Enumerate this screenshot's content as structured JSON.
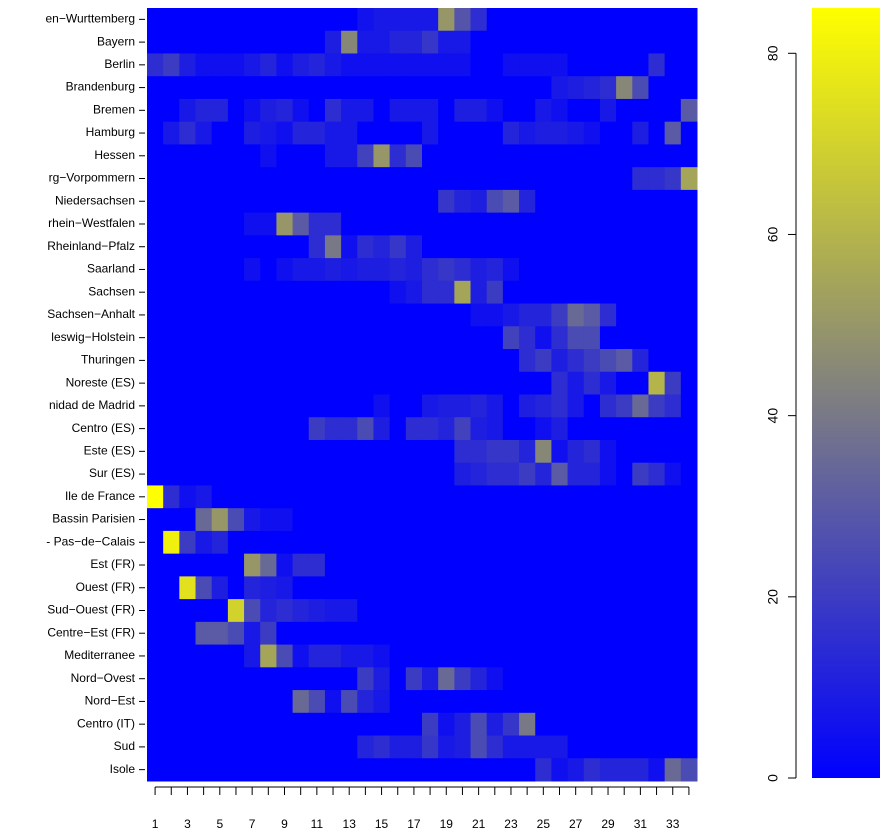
{
  "chart_data": {
    "type": "heatmap",
    "rows": [
      "en−Wurttemberg",
      "Bayern",
      "Berlin",
      "Brandenburg",
      "Bremen",
      "Hamburg",
      "Hessen",
      "rg−Vorpommern",
      "Niedersachsen",
      "rhein−Westfalen",
      "Rheinland−Pfalz",
      "Saarland",
      "Sachsen",
      "Sachsen−Anhalt",
      "leswig−Holstein",
      "Thuringen",
      "Noreste (ES)",
      "nidad de Madrid",
      "Centro (ES)",
      "Este (ES)",
      "Sur (ES)",
      "Ile de France",
      "Bassin Parisien",
      "- Pas−de−Calais",
      "Est (FR)",
      "Ouest (FR)",
      "Sud−Ouest (FR)",
      "Centre−Est (FR)",
      "Mediterranee",
      "Nord−Ovest",
      "Nord−Est",
      "Centro (IT)",
      "Sud",
      "Isole"
    ],
    "columns": [
      1,
      null,
      3,
      null,
      5,
      null,
      7,
      null,
      9,
      null,
      11,
      null,
      13,
      null,
      15,
      null,
      17,
      null,
      19,
      null,
      21,
      null,
      23,
      null,
      25,
      null,
      27,
      null,
      29,
      null,
      31,
      null,
      33,
      null
    ],
    "values": [
      [
        0,
        0,
        0,
        0,
        0,
        0,
        0,
        0,
        0,
        0,
        0,
        0,
        0,
        6,
        8,
        8,
        8,
        8,
        50,
        28,
        15,
        0,
        0,
        0,
        0,
        0,
        0,
        0,
        0,
        0,
        0,
        0,
        0,
        0
      ],
      [
        0,
        0,
        0,
        0,
        0,
        0,
        0,
        0,
        0,
        0,
        0,
        10,
        45,
        8,
        8,
        12,
        12,
        18,
        8,
        8,
        0,
        0,
        0,
        0,
        0,
        0,
        0,
        0,
        0,
        0,
        0,
        0,
        0,
        0
      ],
      [
        15,
        20,
        10,
        5,
        5,
        5,
        8,
        12,
        5,
        10,
        12,
        8,
        5,
        5,
        5,
        5,
        5,
        5,
        5,
        5,
        0,
        0,
        5,
        5,
        5,
        5,
        0,
        0,
        0,
        0,
        0,
        15,
        0,
        0
      ],
      [
        0,
        0,
        0,
        0,
        0,
        0,
        0,
        0,
        0,
        0,
        0,
        0,
        0,
        0,
        0,
        0,
        0,
        0,
        0,
        0,
        0,
        0,
        0,
        0,
        0,
        8,
        10,
        12,
        15,
        45,
        25,
        0,
        0,
        0
      ],
      [
        0,
        0,
        8,
        12,
        12,
        0,
        5,
        10,
        12,
        5,
        0,
        15,
        8,
        8,
        0,
        8,
        8,
        8,
        0,
        10,
        10,
        5,
        0,
        0,
        8,
        5,
        0,
        0,
        8,
        0,
        0,
        0,
        0,
        30
      ],
      [
        0,
        8,
        15,
        8,
        0,
        0,
        10,
        8,
        5,
        12,
        12,
        8,
        8,
        0,
        0,
        0,
        0,
        8,
        0,
        0,
        0,
        0,
        12,
        8,
        10,
        10,
        8,
        5,
        0,
        0,
        10,
        0,
        30,
        0
      ],
      [
        0,
        0,
        0,
        0,
        0,
        0,
        0,
        5,
        0,
        0,
        0,
        8,
        8,
        22,
        50,
        15,
        25,
        0,
        0,
        0,
        0,
        0,
        0,
        0,
        0,
        0,
        0,
        0,
        0,
        0,
        0,
        0,
        0,
        0
      ],
      [
        0,
        0,
        0,
        0,
        0,
        0,
        0,
        0,
        0,
        0,
        0,
        0,
        0,
        0,
        0,
        0,
        0,
        0,
        0,
        0,
        0,
        0,
        0,
        0,
        0,
        0,
        0,
        0,
        0,
        0,
        15,
        15,
        18,
        55
      ],
      [
        0,
        0,
        0,
        0,
        0,
        0,
        0,
        0,
        0,
        0,
        0,
        0,
        0,
        0,
        0,
        0,
        0,
        0,
        18,
        12,
        10,
        25,
        30,
        12,
        0,
        0,
        0,
        0,
        0,
        0,
        0,
        0,
        0,
        0
      ],
      [
        0,
        0,
        0,
        0,
        0,
        0,
        5,
        5,
        50,
        30,
        15,
        15,
        0,
        0,
        0,
        0,
        0,
        0,
        0,
        0,
        0,
        0,
        0,
        0,
        0,
        0,
        0,
        0,
        0,
        0,
        0,
        0,
        0,
        0
      ],
      [
        0,
        0,
        0,
        0,
        0,
        0,
        0,
        0,
        0,
        0,
        15,
        40,
        5,
        15,
        12,
        18,
        10,
        0,
        0,
        0,
        0,
        0,
        0,
        0,
        0,
        0,
        0,
        0,
        0,
        0,
        0,
        0,
        0,
        0
      ],
      [
        0,
        0,
        0,
        0,
        0,
        0,
        5,
        0,
        5,
        8,
        8,
        10,
        8,
        10,
        10,
        12,
        10,
        15,
        18,
        15,
        10,
        12,
        5,
        0,
        0,
        0,
        0,
        0,
        0,
        0,
        0,
        0,
        0,
        0
      ],
      [
        0,
        0,
        0,
        0,
        0,
        0,
        0,
        0,
        0,
        0,
        0,
        0,
        0,
        0,
        0,
        5,
        8,
        15,
        15,
        55,
        10,
        20,
        0,
        0,
        0,
        0,
        0,
        0,
        0,
        0,
        0,
        0,
        0,
        0
      ],
      [
        0,
        0,
        0,
        0,
        0,
        0,
        0,
        0,
        0,
        0,
        0,
        0,
        0,
        0,
        0,
        0,
        0,
        0,
        0,
        0,
        5,
        5,
        8,
        12,
        12,
        20,
        35,
        30,
        15,
        0,
        0,
        0,
        0,
        0
      ],
      [
        0,
        0,
        0,
        0,
        0,
        0,
        0,
        0,
        0,
        0,
        0,
        0,
        0,
        0,
        0,
        0,
        0,
        0,
        0,
        0,
        0,
        0,
        22,
        15,
        5,
        15,
        25,
        25,
        0,
        0,
        0,
        0,
        0,
        0
      ],
      [
        0,
        0,
        0,
        0,
        0,
        0,
        0,
        0,
        0,
        0,
        0,
        0,
        0,
        0,
        0,
        0,
        0,
        0,
        0,
        0,
        0,
        0,
        0,
        15,
        20,
        10,
        15,
        20,
        25,
        30,
        12,
        0,
        0,
        0
      ],
      [
        0,
        0,
        0,
        0,
        0,
        0,
        0,
        0,
        0,
        0,
        0,
        0,
        0,
        0,
        0,
        0,
        0,
        0,
        0,
        0,
        0,
        0,
        0,
        0,
        0,
        15,
        8,
        15,
        8,
        0,
        0,
        60,
        20,
        0
      ],
      [
        0,
        0,
        0,
        0,
        0,
        0,
        0,
        0,
        0,
        0,
        0,
        0,
        0,
        0,
        5,
        0,
        0,
        8,
        10,
        10,
        12,
        8,
        0,
        10,
        12,
        15,
        8,
        0,
        15,
        20,
        35,
        20,
        15,
        0
      ],
      [
        0,
        0,
        0,
        0,
        0,
        0,
        0,
        0,
        0,
        0,
        20,
        15,
        15,
        25,
        10,
        0,
        15,
        15,
        12,
        22,
        10,
        8,
        0,
        0,
        5,
        10,
        0,
        0,
        0,
        0,
        0,
        0,
        0,
        0
      ],
      [
        0,
        0,
        0,
        0,
        0,
        0,
        0,
        0,
        0,
        0,
        0,
        0,
        0,
        0,
        0,
        0,
        0,
        0,
        0,
        15,
        15,
        18,
        18,
        12,
        45,
        5,
        12,
        15,
        5,
        0,
        0,
        0,
        0,
        0
      ],
      [
        0,
        0,
        0,
        0,
        0,
        0,
        0,
        0,
        0,
        0,
        0,
        0,
        0,
        0,
        0,
        0,
        0,
        0,
        0,
        10,
        12,
        15,
        15,
        20,
        12,
        30,
        12,
        12,
        5,
        0,
        20,
        15,
        5,
        0
      ],
      [
        85,
        15,
        5,
        8,
        0,
        0,
        0,
        0,
        0,
        0,
        0,
        0,
        0,
        0,
        0,
        0,
        0,
        0,
        0,
        0,
        0,
        0,
        0,
        0,
        0,
        0,
        0,
        0,
        0,
        0,
        0,
        0,
        0,
        0
      ],
      [
        0,
        0,
        0,
        35,
        50,
        25,
        8,
        5,
        5,
        0,
        0,
        0,
        0,
        0,
        0,
        0,
        0,
        0,
        0,
        0,
        0,
        0,
        0,
        0,
        0,
        0,
        0,
        0,
        0,
        0,
        0,
        0,
        0,
        0
      ],
      [
        0,
        80,
        20,
        8,
        12,
        0,
        0,
        0,
        0,
        0,
        0,
        0,
        0,
        0,
        0,
        0,
        0,
        0,
        0,
        0,
        0,
        0,
        0,
        0,
        0,
        0,
        0,
        0,
        0,
        0,
        0,
        0,
        0,
        0
      ],
      [
        0,
        0,
        0,
        0,
        0,
        0,
        50,
        35,
        5,
        15,
        15,
        0,
        0,
        0,
        0,
        0,
        0,
        0,
        0,
        0,
        0,
        0,
        0,
        0,
        0,
        0,
        0,
        0,
        0,
        0,
        0,
        0,
        0,
        0
      ],
      [
        0,
        0,
        75,
        25,
        10,
        0,
        12,
        10,
        8,
        0,
        0,
        0,
        0,
        0,
        0,
        0,
        0,
        0,
        0,
        0,
        0,
        0,
        0,
        0,
        0,
        0,
        0,
        0,
        0,
        0,
        0,
        0,
        0,
        0
      ],
      [
        0,
        0,
        0,
        0,
        0,
        70,
        25,
        12,
        15,
        12,
        10,
        8,
        8,
        0,
        0,
        0,
        0,
        0,
        0,
        0,
        0,
        0,
        0,
        0,
        0,
        0,
        0,
        0,
        0,
        0,
        0,
        0,
        0,
        0
      ],
      [
        0,
        0,
        0,
        30,
        30,
        25,
        8,
        20,
        0,
        0,
        0,
        0,
        0,
        0,
        0,
        0,
        0,
        0,
        0,
        0,
        0,
        0,
        0,
        0,
        0,
        0,
        0,
        0,
        0,
        0,
        0,
        0,
        0,
        0
      ],
      [
        0,
        0,
        0,
        0,
        0,
        0,
        8,
        55,
        25,
        5,
        12,
        12,
        8,
        8,
        5,
        0,
        0,
        0,
        0,
        0,
        0,
        0,
        0,
        0,
        0,
        0,
        0,
        0,
        0,
        0,
        0,
        0,
        0,
        0
      ],
      [
        0,
        0,
        0,
        0,
        0,
        0,
        0,
        0,
        0,
        0,
        0,
        0,
        0,
        20,
        10,
        0,
        20,
        10,
        35,
        20,
        12,
        5,
        0,
        0,
        0,
        0,
        0,
        0,
        0,
        0,
        0,
        0,
        0,
        0
      ],
      [
        0,
        0,
        0,
        0,
        0,
        0,
        0,
        0,
        0,
        35,
        25,
        5,
        25,
        12,
        8,
        0,
        0,
        0,
        0,
        0,
        0,
        0,
        0,
        0,
        0,
        0,
        0,
        0,
        0,
        0,
        0,
        0,
        0,
        0
      ],
      [
        0,
        0,
        0,
        0,
        0,
        0,
        0,
        0,
        0,
        0,
        0,
        0,
        0,
        0,
        0,
        0,
        0,
        20,
        5,
        10,
        25,
        10,
        18,
        40,
        0,
        0,
        0,
        0,
        0,
        0,
        0,
        0,
        0,
        0
      ],
      [
        0,
        0,
        0,
        0,
        0,
        0,
        0,
        0,
        0,
        0,
        0,
        0,
        0,
        12,
        15,
        10,
        10,
        18,
        8,
        10,
        25,
        15,
        8,
        8,
        8,
        8,
        0,
        0,
        0,
        0,
        0,
        0,
        0,
        0
      ],
      [
        0,
        0,
        0,
        0,
        0,
        0,
        0,
        0,
        0,
        0,
        0,
        0,
        0,
        0,
        0,
        0,
        0,
        0,
        0,
        0,
        0,
        0,
        0,
        0,
        15,
        5,
        8,
        15,
        12,
        12,
        12,
        5,
        35,
        25
      ]
    ],
    "colors": [
      "#0000ff",
      "#808080",
      "#ffff00"
    ],
    "ylim": [
      0,
      85
    ],
    "yticks": [
      0,
      20,
      40,
      60,
      80
    ]
  }
}
